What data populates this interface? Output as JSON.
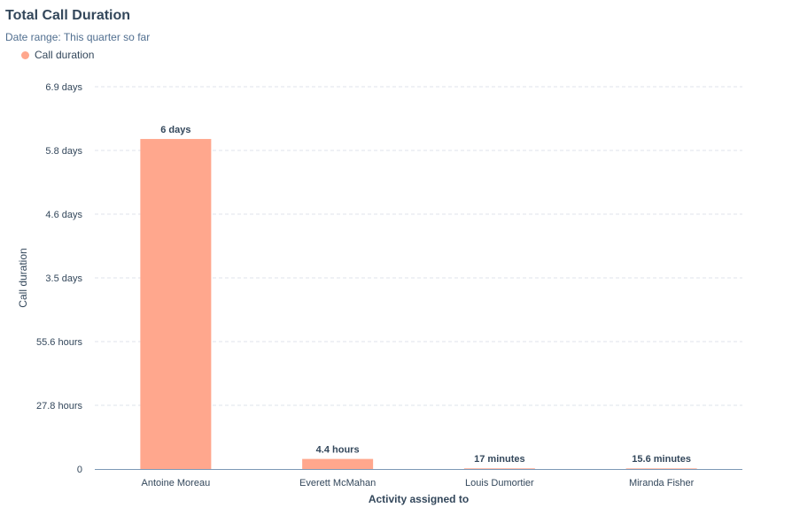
{
  "chart_data": {
    "type": "bar",
    "title": "Total Call Duration",
    "subtitle": "Date range: This quarter so far",
    "legend": [
      {
        "name": "Call duration",
        "color": "#ffa78d"
      }
    ],
    "legend_position": "top-left",
    "xlabel": "Activity assigned to",
    "ylabel": "Call duration",
    "unit": "hours",
    "categories": [
      "Antoine Moreau",
      "Everett McMahan",
      "Louis Dumortier",
      "Miranda Fisher"
    ],
    "values": [
      144,
      4.4,
      0.283,
      0.26
    ],
    "data_labels": [
      "6 days",
      "4.4 hours",
      "17 minutes",
      "15.6 minutes"
    ],
    "yticks": [
      {
        "value": 0,
        "label": "0"
      },
      {
        "value": 27.8,
        "label": "27.8 hours"
      },
      {
        "value": 55.6,
        "label": "55.6 hours"
      },
      {
        "value": 83.4,
        "label": "3.5 days"
      },
      {
        "value": 111.2,
        "label": "4.6 days"
      },
      {
        "value": 139,
        "label": "5.8 days"
      },
      {
        "value": 166.8,
        "label": "6.9 days"
      }
    ],
    "ylim": [
      0,
      166.8
    ],
    "grid": true,
    "bar_color": "#ffa78d"
  }
}
